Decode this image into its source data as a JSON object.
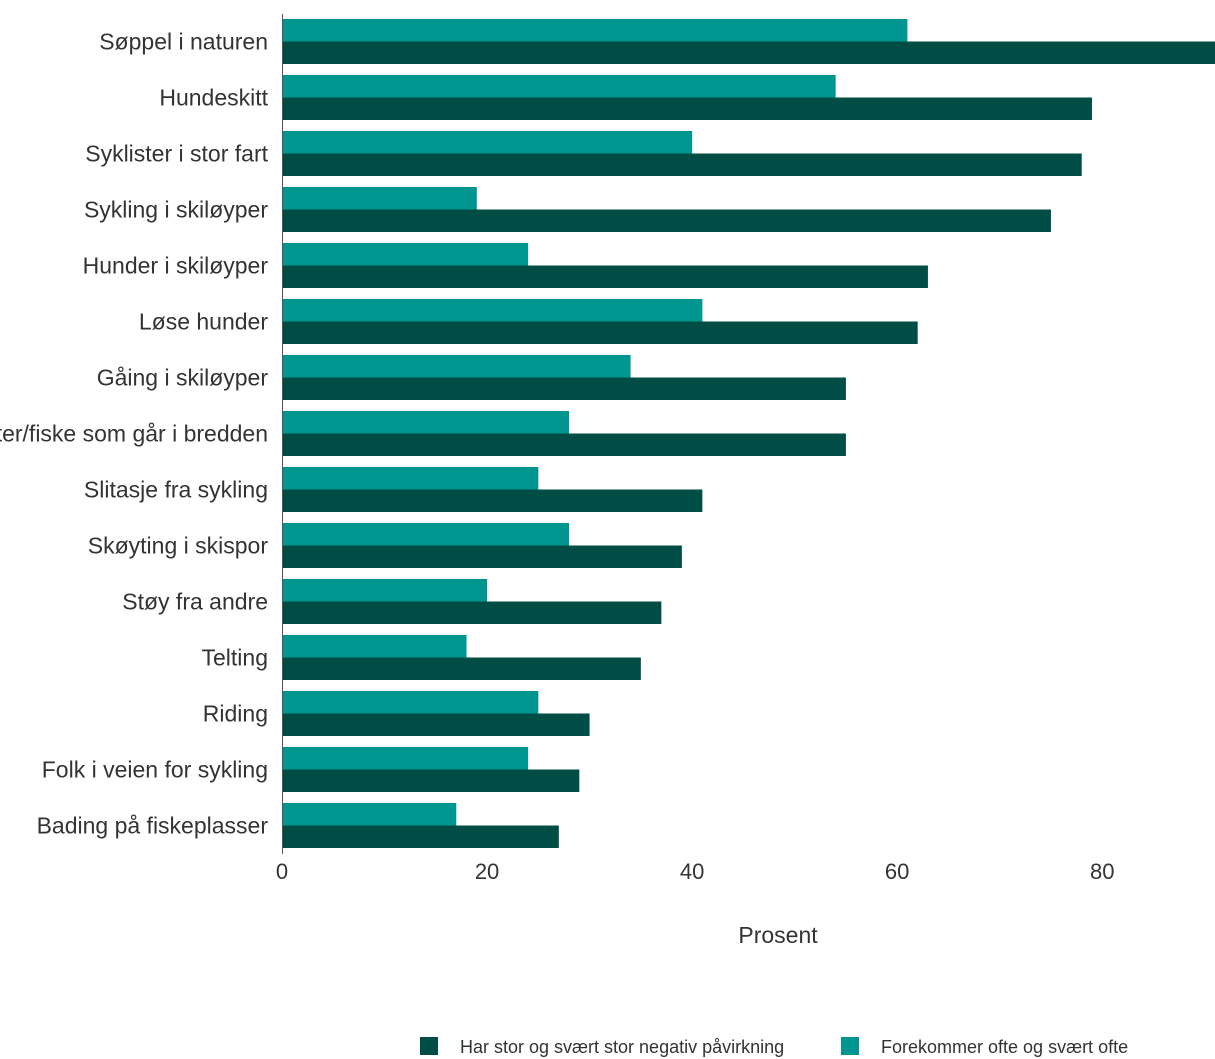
{
  "chart_data": {
    "type": "bar",
    "orientation": "horizontal",
    "categories": [
      "Søppel i naturen",
      "Hundeskitt",
      "Syklister i stor fart",
      "Sykling i skiløyper",
      "Hunder i skiløyper",
      "Løse hunder",
      "Gåing i skiløyper",
      "Folk/båter/fiske som går i bredden",
      "Slitasje fra sykling",
      "Skøyting i skispor",
      "Støy fra andre",
      "Telting",
      "Riding",
      "Folk i veien for sykling",
      "Bading på fiskeplasser"
    ],
    "series": [
      {
        "name": "Forekommer ofte og svært ofte",
        "color": "#00968f",
        "values": [
          61,
          54,
          40,
          19,
          24,
          41,
          34,
          28,
          25,
          28,
          20,
          18,
          25,
          24,
          17
        ]
      },
      {
        "name": "Har stor og svært stor negativ påvirkning",
        "color": "#004d45",
        "values": [
          91,
          79,
          78,
          75,
          63,
          62,
          55,
          55,
          41,
          39,
          37,
          35,
          30,
          29,
          27
        ]
      }
    ],
    "xlabel": "Prosent",
    "xlim": [
      0,
      91
    ],
    "xticks": [
      0,
      20,
      40,
      60,
      80
    ],
    "grid": false,
    "legend": {
      "position": "bottom-right",
      "order": [
        "Har stor og svært stor negativ påvirkning",
        "Forekommer ofte og svært ofte"
      ]
    }
  }
}
